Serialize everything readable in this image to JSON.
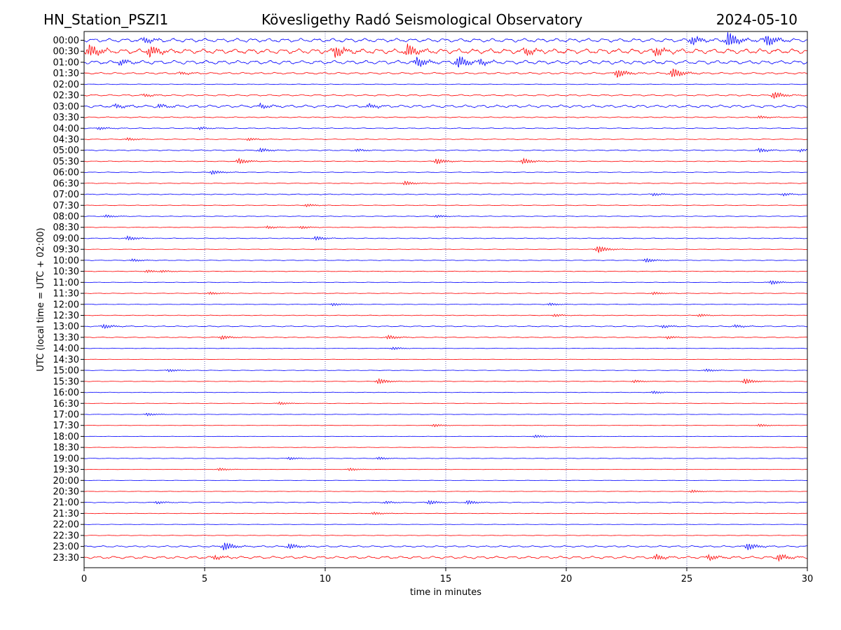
{
  "header": {
    "station": "HN_Station_PSZI1",
    "observatory": "Kövesligethy Radó Seismological Observatory",
    "date": "2024-05-10"
  },
  "chart_data": {
    "type": "line",
    "title": "Kövesligethy Radó Seismological Observatory",
    "xlabel": "time in minutes",
    "ylabel": "UTC (local time = UTC + 02:00)",
    "xlim": [
      0,
      30
    ],
    "xticks": [
      0,
      5,
      10,
      15,
      20,
      25,
      30
    ],
    "x_gridlines_at": [
      5,
      10,
      15,
      20,
      25
    ],
    "trace_colors": [
      "#0000ff",
      "#ff0000"
    ],
    "rows": [
      {
        "label": "00:00",
        "amp": 3,
        "events": [
          {
            "t": 26.7,
            "a": 11
          },
          {
            "t": 28.3,
            "a": 8
          },
          {
            "t": 25.2,
            "a": 6
          },
          {
            "t": 2.5,
            "a": 4
          }
        ]
      },
      {
        "label": "00:30",
        "amp": 4,
        "events": [
          {
            "t": 0.2,
            "a": 9
          },
          {
            "t": 2.7,
            "a": 8
          },
          {
            "t": 10.4,
            "a": 8
          },
          {
            "t": 13.4,
            "a": 9
          },
          {
            "t": 18.3,
            "a": 5
          },
          {
            "t": 23.7,
            "a": 6
          }
        ]
      },
      {
        "label": "01:00",
        "amp": 3,
        "events": [
          {
            "t": 13.8,
            "a": 7
          },
          {
            "t": 15.5,
            "a": 9
          },
          {
            "t": 16.4,
            "a": 5
          },
          {
            "t": 1.5,
            "a": 4
          }
        ]
      },
      {
        "label": "01:30",
        "amp": 1.5,
        "events": [
          {
            "t": 22.1,
            "a": 6
          },
          {
            "t": 24.4,
            "a": 7
          },
          {
            "t": 4.0,
            "a": 2
          }
        ]
      },
      {
        "label": "02:00",
        "amp": 0.5,
        "events": []
      },
      {
        "label": "02:30",
        "amp": 1.2,
        "events": [
          {
            "t": 28.6,
            "a": 5
          },
          {
            "t": 2.5,
            "a": 2
          }
        ]
      },
      {
        "label": "03:00",
        "amp": 2.2,
        "events": [
          {
            "t": 1.3,
            "a": 3
          },
          {
            "t": 3.1,
            "a": 3
          },
          {
            "t": 7.3,
            "a": 3
          },
          {
            "t": 11.8,
            "a": 3
          }
        ]
      },
      {
        "label": "03:30",
        "amp": 0.8,
        "events": [
          {
            "t": 28.0,
            "a": 2
          }
        ]
      },
      {
        "label": "04:00",
        "amp": 0.7,
        "events": [
          {
            "t": 0.6,
            "a": 2
          },
          {
            "t": 4.8,
            "a": 2
          }
        ]
      },
      {
        "label": "04:30",
        "amp": 0.6,
        "events": [
          {
            "t": 1.8,
            "a": 2
          },
          {
            "t": 6.8,
            "a": 2
          }
        ]
      },
      {
        "label": "05:00",
        "amp": 0.8,
        "events": [
          {
            "t": 7.3,
            "a": 3
          },
          {
            "t": 11.3,
            "a": 2
          },
          {
            "t": 28.0,
            "a": 3
          },
          {
            "t": 29.7,
            "a": 2
          }
        ]
      },
      {
        "label": "05:30",
        "amp": 0.6,
        "events": [
          {
            "t": 6.4,
            "a": 4
          },
          {
            "t": 14.6,
            "a": 4
          },
          {
            "t": 18.2,
            "a": 4
          }
        ]
      },
      {
        "label": "06:00",
        "amp": 0.5,
        "events": [
          {
            "t": 5.3,
            "a": 3
          }
        ]
      },
      {
        "label": "06:30",
        "amp": 0.5,
        "events": [
          {
            "t": 13.3,
            "a": 3
          }
        ]
      },
      {
        "label": "07:00",
        "amp": 0.7,
        "events": [
          {
            "t": 23.6,
            "a": 2
          },
          {
            "t": 29.0,
            "a": 2
          }
        ]
      },
      {
        "label": "07:30",
        "amp": 0.5,
        "events": [
          {
            "t": 9.2,
            "a": 2
          }
        ]
      },
      {
        "label": "08:00",
        "amp": 0.5,
        "events": [
          {
            "t": 0.9,
            "a": 2
          },
          {
            "t": 14.6,
            "a": 2
          }
        ]
      },
      {
        "label": "08:30",
        "amp": 0.5,
        "events": [
          {
            "t": 7.6,
            "a": 2
          },
          {
            "t": 9.0,
            "a": 2
          }
        ]
      },
      {
        "label": "09:00",
        "amp": 0.6,
        "events": [
          {
            "t": 1.8,
            "a": 3
          },
          {
            "t": 9.6,
            "a": 3
          }
        ]
      },
      {
        "label": "09:30",
        "amp": 0.4,
        "events": [
          {
            "t": 21.3,
            "a": 5
          }
        ]
      },
      {
        "label": "10:00",
        "amp": 0.5,
        "events": [
          {
            "t": 2.0,
            "a": 2
          },
          {
            "t": 23.3,
            "a": 3
          }
        ]
      },
      {
        "label": "10:30",
        "amp": 0.5,
        "events": [
          {
            "t": 2.6,
            "a": 2
          },
          {
            "t": 3.2,
            "a": 2
          }
        ]
      },
      {
        "label": "11:00",
        "amp": 0.4,
        "events": [
          {
            "t": 28.5,
            "a": 3
          }
        ]
      },
      {
        "label": "11:30",
        "amp": 0.4,
        "events": [
          {
            "t": 5.2,
            "a": 2
          },
          {
            "t": 23.6,
            "a": 2
          }
        ]
      },
      {
        "label": "12:00",
        "amp": 0.4,
        "events": [
          {
            "t": 10.3,
            "a": 2
          },
          {
            "t": 19.3,
            "a": 2
          }
        ]
      },
      {
        "label": "12:30",
        "amp": 0.5,
        "events": [
          {
            "t": 19.5,
            "a": 2
          },
          {
            "t": 25.5,
            "a": 2
          }
        ]
      },
      {
        "label": "13:00",
        "amp": 0.8,
        "events": [
          {
            "t": 0.8,
            "a": 3
          },
          {
            "t": 24.0,
            "a": 2
          },
          {
            "t": 27.0,
            "a": 2
          }
        ]
      },
      {
        "label": "13:30",
        "amp": 0.6,
        "events": [
          {
            "t": 5.7,
            "a": 3
          },
          {
            "t": 12.6,
            "a": 3
          },
          {
            "t": 24.2,
            "a": 2
          }
        ]
      },
      {
        "label": "14:00",
        "amp": 0.4,
        "events": [
          {
            "t": 12.8,
            "a": 2
          }
        ]
      },
      {
        "label": "14:30",
        "amp": 0.3,
        "events": []
      },
      {
        "label": "15:00",
        "amp": 0.4,
        "events": [
          {
            "t": 3.5,
            "a": 2
          },
          {
            "t": 25.8,
            "a": 2
          }
        ]
      },
      {
        "label": "15:30",
        "amp": 0.4,
        "events": [
          {
            "t": 12.2,
            "a": 4
          },
          {
            "t": 22.8,
            "a": 2
          },
          {
            "t": 27.4,
            "a": 4
          }
        ]
      },
      {
        "label": "16:00",
        "amp": 0.4,
        "events": [
          {
            "t": 23.6,
            "a": 2
          }
        ]
      },
      {
        "label": "16:30",
        "amp": 0.3,
        "events": [
          {
            "t": 8.1,
            "a": 2
          }
        ]
      },
      {
        "label": "17:00",
        "amp": 0.3,
        "events": [
          {
            "t": 2.6,
            "a": 2
          }
        ]
      },
      {
        "label": "17:30",
        "amp": 0.3,
        "events": [
          {
            "t": 14.5,
            "a": 2
          },
          {
            "t": 28.0,
            "a": 2
          }
        ]
      },
      {
        "label": "18:00",
        "amp": 0.3,
        "events": [
          {
            "t": 18.7,
            "a": 2
          }
        ]
      },
      {
        "label": "18:30",
        "amp": 0.3,
        "events": []
      },
      {
        "label": "19:00",
        "amp": 0.4,
        "events": [
          {
            "t": 8.5,
            "a": 2
          },
          {
            "t": 12.2,
            "a": 2
          }
        ]
      },
      {
        "label": "19:30",
        "amp": 0.3,
        "events": [
          {
            "t": 5.6,
            "a": 2
          },
          {
            "t": 11.0,
            "a": 2
          }
        ]
      },
      {
        "label": "20:00",
        "amp": 0.3,
        "events": []
      },
      {
        "label": "20:30",
        "amp": 0.3,
        "events": [
          {
            "t": 25.2,
            "a": 2
          }
        ]
      },
      {
        "label": "21:00",
        "amp": 0.6,
        "events": [
          {
            "t": 3.0,
            "a": 2
          },
          {
            "t": 12.5,
            "a": 2
          },
          {
            "t": 14.3,
            "a": 3
          },
          {
            "t": 15.9,
            "a": 3
          }
        ]
      },
      {
        "label": "21:30",
        "amp": 0.4,
        "events": [
          {
            "t": 12.0,
            "a": 2
          }
        ]
      },
      {
        "label": "22:00",
        "amp": 0.3,
        "events": []
      },
      {
        "label": "22:30",
        "amp": 0.4,
        "events": []
      },
      {
        "label": "23:00",
        "amp": 1.2,
        "events": [
          {
            "t": 5.8,
            "a": 6
          },
          {
            "t": 8.5,
            "a": 4
          },
          {
            "t": 27.5,
            "a": 5
          }
        ]
      },
      {
        "label": "23:30",
        "amp": 2.0,
        "events": [
          {
            "t": 5.4,
            "a": 3
          },
          {
            "t": 23.7,
            "a": 4
          },
          {
            "t": 25.9,
            "a": 4
          },
          {
            "t": 28.8,
            "a": 5
          }
        ]
      }
    ]
  }
}
